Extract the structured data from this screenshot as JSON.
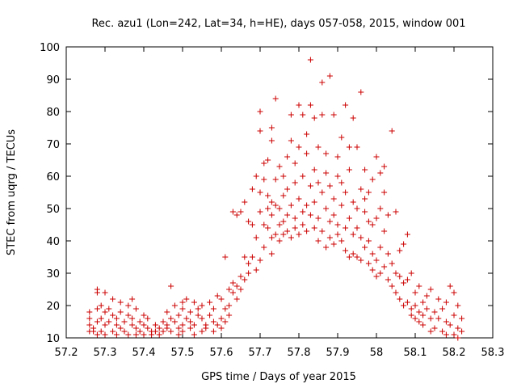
{
  "chart_data": {
    "type": "scatter",
    "title": "Rec. azu1 (Lon=242, Lat=34, h=HE), days 057-058, 2015, window 001",
    "xlabel": "GPS time / Days of year 2015",
    "ylabel": "STEC from uqrg / TECUs",
    "xlim": [
      57.2,
      58.3
    ],
    "ylim": [
      10,
      100
    ],
    "xticks": [
      57.2,
      57.3,
      57.4,
      57.5,
      57.6,
      57.7,
      57.8,
      57.9,
      58.0,
      58.1,
      58.2,
      58.3
    ],
    "xtick_labels": [
      "57.2",
      "57.3",
      "57.4",
      "57.5",
      "57.6",
      "57.7",
      "57.8",
      "57.9",
      "58",
      "58.1",
      "58.2",
      "58.3"
    ],
    "yticks": [
      10,
      20,
      30,
      40,
      50,
      60,
      70,
      80,
      90,
      100
    ],
    "ytick_labels": [
      "10",
      "20",
      "30",
      "40",
      "50",
      "60",
      "70",
      "80",
      "90",
      "100"
    ],
    "grid": false,
    "legend": "none",
    "marker": "+",
    "color": "#cc0000",
    "series": [
      {
        "name": "",
        "points": [
          [
            57.26,
            18
          ],
          [
            57.26,
            16
          ],
          [
            57.26,
            14
          ],
          [
            57.26,
            12
          ],
          [
            57.27,
            12
          ],
          [
            57.27,
            13
          ],
          [
            57.28,
            11
          ],
          [
            57.28,
            15
          ],
          [
            57.28,
            19
          ],
          [
            57.28,
            24
          ],
          [
            57.28,
            25
          ],
          [
            57.29,
            16
          ],
          [
            57.29,
            20
          ],
          [
            57.29,
            12
          ],
          [
            57.3,
            18
          ],
          [
            57.3,
            14
          ],
          [
            57.3,
            11
          ],
          [
            57.3,
            24
          ],
          [
            57.31,
            19
          ],
          [
            57.31,
            15
          ],
          [
            57.32,
            12
          ],
          [
            57.32,
            17
          ],
          [
            57.32,
            22
          ],
          [
            57.33,
            16
          ],
          [
            57.33,
            14
          ],
          [
            57.33,
            11
          ],
          [
            57.34,
            21
          ],
          [
            57.34,
            18
          ],
          [
            57.34,
            13
          ],
          [
            57.35,
            15
          ],
          [
            57.35,
            12
          ],
          [
            57.36,
            17
          ],
          [
            57.36,
            20
          ],
          [
            57.36,
            11
          ],
          [
            57.37,
            14
          ],
          [
            57.37,
            22
          ],
          [
            57.37,
            16
          ],
          [
            57.38,
            13
          ],
          [
            57.38,
            11
          ],
          [
            57.38,
            19
          ],
          [
            57.39,
            15
          ],
          [
            57.39,
            12
          ],
          [
            57.4,
            14
          ],
          [
            57.4,
            11
          ],
          [
            57.4,
            17
          ],
          [
            57.41,
            13
          ],
          [
            57.41,
            16
          ],
          [
            57.42,
            11
          ],
          [
            57.42,
            12
          ],
          [
            57.43,
            14
          ],
          [
            57.43,
            12
          ],
          [
            57.44,
            13
          ],
          [
            57.44,
            11
          ],
          [
            57.45,
            15
          ],
          [
            57.45,
            12
          ],
          [
            57.46,
            14
          ],
          [
            57.46,
            18
          ],
          [
            57.46,
            13
          ],
          [
            57.47,
            16
          ],
          [
            57.47,
            26
          ],
          [
            57.47,
            12
          ],
          [
            57.48,
            20
          ],
          [
            57.48,
            15
          ],
          [
            57.49,
            13
          ],
          [
            57.49,
            17
          ],
          [
            57.49,
            11
          ],
          [
            57.5,
            21
          ],
          [
            57.5,
            14
          ],
          [
            57.5,
            19
          ],
          [
            57.5,
            12
          ],
          [
            57.51,
            16
          ],
          [
            57.51,
            22
          ],
          [
            57.52,
            13
          ],
          [
            57.52,
            18
          ],
          [
            57.52,
            15
          ],
          [
            57.53,
            21
          ],
          [
            57.53,
            11
          ],
          [
            57.53,
            14
          ],
          [
            57.54,
            17
          ],
          [
            57.54,
            19
          ],
          [
            57.55,
            12
          ],
          [
            57.55,
            16
          ],
          [
            57.55,
            20
          ],
          [
            57.56,
            14
          ],
          [
            57.56,
            13
          ],
          [
            57.57,
            17
          ],
          [
            57.57,
            21
          ],
          [
            57.58,
            15
          ],
          [
            57.58,
            12
          ],
          [
            57.58,
            19
          ],
          [
            57.59,
            14
          ],
          [
            57.59,
            23
          ],
          [
            57.6,
            16
          ],
          [
            57.6,
            22
          ],
          [
            57.6,
            13
          ],
          [
            57.61,
            35
          ],
          [
            57.61,
            19
          ],
          [
            57.61,
            15
          ],
          [
            57.62,
            20
          ],
          [
            57.62,
            25
          ],
          [
            57.62,
            17
          ],
          [
            57.63,
            24
          ],
          [
            57.63,
            49
          ],
          [
            57.63,
            27
          ],
          [
            57.64,
            22
          ],
          [
            57.64,
            48
          ],
          [
            57.64,
            26
          ],
          [
            57.65,
            29
          ],
          [
            57.65,
            25
          ],
          [
            57.65,
            49
          ],
          [
            57.66,
            28
          ],
          [
            57.66,
            35
          ],
          [
            57.66,
            52
          ],
          [
            57.67,
            33
          ],
          [
            57.67,
            46
          ],
          [
            57.67,
            30
          ],
          [
            57.68,
            45
          ],
          [
            57.68,
            56
          ],
          [
            57.68,
            35
          ],
          [
            57.69,
            41
          ],
          [
            57.69,
            60
          ],
          [
            57.69,
            31
          ],
          [
            57.7,
            49
          ],
          [
            57.7,
            55
          ],
          [
            57.7,
            80
          ],
          [
            57.7,
            74
          ],
          [
            57.7,
            34
          ],
          [
            57.71,
            38
          ],
          [
            57.71,
            45
          ],
          [
            57.71,
            59
          ],
          [
            57.71,
            64
          ],
          [
            57.72,
            44
          ],
          [
            57.72,
            50
          ],
          [
            57.72,
            54
          ],
          [
            57.72,
            65
          ],
          [
            57.73,
            36
          ],
          [
            57.73,
            41
          ],
          [
            57.73,
            48
          ],
          [
            57.73,
            52
          ],
          [
            57.73,
            75
          ],
          [
            57.73,
            71
          ],
          [
            57.74,
            84
          ],
          [
            57.74,
            42
          ],
          [
            57.74,
            59
          ],
          [
            57.74,
            51
          ],
          [
            57.75,
            45
          ],
          [
            57.75,
            40
          ],
          [
            57.75,
            50
          ],
          [
            57.75,
            63
          ],
          [
            57.76,
            46
          ],
          [
            57.76,
            42
          ],
          [
            57.76,
            54
          ],
          [
            57.76,
            60
          ],
          [
            57.77,
            43
          ],
          [
            57.77,
            48
          ],
          [
            57.77,
            56
          ],
          [
            57.77,
            66
          ],
          [
            57.78,
            41
          ],
          [
            57.78,
            51
          ],
          [
            57.78,
            71
          ],
          [
            57.78,
            79
          ],
          [
            57.79,
            47
          ],
          [
            57.79,
            44
          ],
          [
            57.79,
            58
          ],
          [
            57.79,
            64
          ],
          [
            57.8,
            42
          ],
          [
            57.8,
            53
          ],
          [
            57.8,
            69
          ],
          [
            57.8,
            82
          ],
          [
            57.81,
            45
          ],
          [
            57.81,
            49
          ],
          [
            57.81,
            60
          ],
          [
            57.81,
            79
          ],
          [
            57.82,
            43
          ],
          [
            57.82,
            51
          ],
          [
            57.82,
            73
          ],
          [
            57.82,
            67
          ],
          [
            57.83,
            96
          ],
          [
            57.83,
            48
          ],
          [
            57.83,
            57
          ],
          [
            57.83,
            82
          ],
          [
            57.84,
            44
          ],
          [
            57.84,
            52
          ],
          [
            57.84,
            62
          ],
          [
            57.84,
            78
          ],
          [
            57.85,
            40
          ],
          [
            57.85,
            47
          ],
          [
            57.85,
            58
          ],
          [
            57.85,
            69
          ],
          [
            57.86,
            89
          ],
          [
            57.86,
            43
          ],
          [
            57.86,
            55
          ],
          [
            57.86,
            79
          ],
          [
            57.87,
            38
          ],
          [
            57.87,
            50
          ],
          [
            57.87,
            61
          ],
          [
            57.87,
            67
          ],
          [
            57.88,
            41
          ],
          [
            57.88,
            46
          ],
          [
            57.88,
            57
          ],
          [
            57.88,
            91
          ],
          [
            57.89,
            39
          ],
          [
            57.89,
            48
          ],
          [
            57.89,
            53
          ],
          [
            57.89,
            79
          ],
          [
            57.9,
            42
          ],
          [
            57.9,
            45
          ],
          [
            57.9,
            60
          ],
          [
            57.9,
            66
          ],
          [
            57.91,
            40
          ],
          [
            57.91,
            51
          ],
          [
            57.91,
            58
          ],
          [
            57.91,
            72
          ],
          [
            57.92,
            37
          ],
          [
            57.92,
            44
          ],
          [
            57.92,
            55
          ],
          [
            57.92,
            82
          ],
          [
            57.93,
            35
          ],
          [
            57.93,
            47
          ],
          [
            57.93,
            62
          ],
          [
            57.93,
            69
          ],
          [
            57.94,
            36
          ],
          [
            57.94,
            42
          ],
          [
            57.94,
            52
          ],
          [
            57.94,
            78
          ],
          [
            57.95,
            35
          ],
          [
            57.95,
            44
          ],
          [
            57.95,
            50
          ],
          [
            57.95,
            69
          ],
          [
            57.96,
            34
          ],
          [
            57.96,
            41
          ],
          [
            57.96,
            56
          ],
          [
            57.96,
            86
          ],
          [
            57.97,
            38
          ],
          [
            57.97,
            49
          ],
          [
            57.97,
            53
          ],
          [
            57.97,
            62
          ],
          [
            57.98,
            33
          ],
          [
            57.98,
            40
          ],
          [
            57.98,
            46
          ],
          [
            57.98,
            55
          ],
          [
            57.99,
            31
          ],
          [
            57.99,
            36
          ],
          [
            57.99,
            45
          ],
          [
            57.99,
            59
          ],
          [
            58.0,
            29
          ],
          [
            58.0,
            34
          ],
          [
            58.0,
            47
          ],
          [
            58.0,
            66
          ],
          [
            58.01,
            30
          ],
          [
            58.01,
            38
          ],
          [
            58.01,
            50
          ],
          [
            58.01,
            61
          ],
          [
            58.02,
            32
          ],
          [
            58.02,
            43
          ],
          [
            58.02,
            55
          ],
          [
            58.02,
            63
          ],
          [
            58.03,
            28
          ],
          [
            58.03,
            36
          ],
          [
            58.03,
            48
          ],
          [
            58.04,
            26
          ],
          [
            58.04,
            33
          ],
          [
            58.04,
            74
          ],
          [
            58.05,
            24
          ],
          [
            58.05,
            30
          ],
          [
            58.05,
            49
          ],
          [
            58.06,
            22
          ],
          [
            58.06,
            29
          ],
          [
            58.06,
            37
          ],
          [
            58.07,
            20
          ],
          [
            58.07,
            27
          ],
          [
            58.07,
            39
          ],
          [
            58.08,
            21
          ],
          [
            58.08,
            28
          ],
          [
            58.08,
            42
          ],
          [
            58.09,
            19
          ],
          [
            58.09,
            17
          ],
          [
            58.09,
            30
          ],
          [
            58.1,
            16
          ],
          [
            58.1,
            24
          ],
          [
            58.1,
            20
          ],
          [
            58.11,
            18
          ],
          [
            58.11,
            26
          ],
          [
            58.11,
            15
          ],
          [
            58.12,
            21
          ],
          [
            58.12,
            17
          ],
          [
            58.12,
            14
          ],
          [
            58.13,
            23
          ],
          [
            58.13,
            19
          ],
          [
            58.14,
            12
          ],
          [
            58.14,
            16
          ],
          [
            58.14,
            25
          ],
          [
            58.15,
            18
          ],
          [
            58.15,
            13
          ],
          [
            58.16,
            22
          ],
          [
            58.16,
            16
          ],
          [
            58.17,
            12
          ],
          [
            58.17,
            19
          ],
          [
            58.18,
            11
          ],
          [
            58.18,
            21
          ],
          [
            58.18,
            15
          ],
          [
            58.19,
            14
          ],
          [
            58.19,
            26
          ],
          [
            58.2,
            11
          ],
          [
            58.2,
            17
          ],
          [
            58.2,
            24
          ],
          [
            58.21,
            13
          ],
          [
            58.21,
            10
          ],
          [
            58.21,
            20
          ],
          [
            58.22,
            16
          ],
          [
            58.22,
            12
          ]
        ]
      }
    ]
  }
}
